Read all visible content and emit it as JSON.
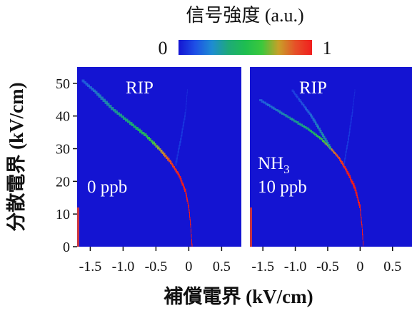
{
  "colorbar": {
    "title": "信号強度 (a.u.)",
    "min_label": "0",
    "max_label": "1",
    "colors": [
      "#1414d2",
      "#1e50e6",
      "#1e8cd2",
      "#1eaa78",
      "#1ebe50",
      "#3cc83c",
      "#c8a028",
      "#e65028",
      "#f01e1e"
    ]
  },
  "chart_data": [
    {
      "type": "heatmap",
      "panel": "left",
      "xlabel": "補償電界 (kV/cm)",
      "ylabel": "分散電界 (kV/cm)",
      "xlim": [
        -1.7,
        0.8
      ],
      "ylim": [
        0,
        55
      ],
      "xticks": [
        "-1.5",
        "-1.0",
        "-0.5",
        "0",
        "0.5"
      ],
      "xtick_values": [
        -1.5,
        -1.0,
        -0.5,
        0,
        0.5
      ],
      "yticks": [
        "0",
        "10",
        "20",
        "30",
        "40",
        "50"
      ],
      "ytick_values": [
        0,
        10,
        20,
        30,
        40,
        50
      ],
      "background_color": "#1414d2",
      "annotations": {
        "peak": "RIP",
        "gas": "",
        "concentration": "0 ppb"
      },
      "traces": [
        {
          "points": [
            [
              0.05,
              0
            ],
            [
              0.03,
              6
            ],
            [
              0.0,
              12
            ],
            [
              -0.05,
              17
            ],
            [
              -0.15,
              22
            ],
            [
              -0.28,
              26
            ],
            [
              -0.45,
              30
            ],
            [
              -0.65,
              34
            ],
            [
              -0.9,
              38
            ],
            [
              -1.15,
              42
            ],
            [
              -1.4,
              47
            ],
            [
              -1.62,
              51
            ]
          ],
          "intensity": [
            1.0,
            1.0,
            1.0,
            1.0,
            1.0,
            0.95,
            0.8,
            0.65,
            0.55,
            0.45,
            0.35,
            0.25
          ]
        },
        {
          "points": [
            [
              -0.2,
              25
            ],
            [
              -0.12,
              33
            ],
            [
              -0.05,
              41
            ],
            [
              -0.02,
              48
            ]
          ],
          "intensity": [
            0.12,
            0.15,
            0.12,
            0.08
          ]
        }
      ],
      "edge_marks": [
        {
          "x": -1.7,
          "y_range": [
            0,
            12
          ]
        }
      ]
    },
    {
      "type": "heatmap",
      "panel": "right",
      "xlabel": "補償電界 (kV/cm)",
      "xlim": [
        -1.7,
        0.8
      ],
      "ylim": [
        0,
        55
      ],
      "xticks": [
        "-1.5",
        "-1.0",
        "-0.5",
        "0",
        "0.5"
      ],
      "xtick_values": [
        -1.5,
        -1.0,
        -0.5,
        0,
        0.5
      ],
      "background_color": "#1414d2",
      "annotations": {
        "peak": "RIP",
        "gas": "NH3",
        "concentration": "10 ppb"
      },
      "traces": [
        {
          "points": [
            [
              0.05,
              0
            ],
            [
              0.03,
              6
            ],
            [
              0.0,
              12
            ],
            [
              -0.08,
              18
            ],
            [
              -0.2,
              23
            ],
            [
              -0.32,
              27
            ],
            [
              -0.45,
              30
            ],
            [
              -0.6,
              33
            ],
            [
              -0.8,
              36
            ],
            [
              -1.05,
              39
            ],
            [
              -1.3,
              42
            ],
            [
              -1.55,
              45
            ]
          ],
          "intensity": [
            1.0,
            1.0,
            1.0,
            1.0,
            1.0,
            0.95,
            0.85,
            0.7,
            0.55,
            0.45,
            0.35,
            0.25
          ]
        },
        {
          "points": [
            [
              -0.45,
              30
            ],
            [
              -0.6,
              35
            ],
            [
              -0.75,
              40
            ],
            [
              -0.9,
              44
            ],
            [
              -1.05,
              48
            ]
          ],
          "intensity": [
            0.45,
            0.4,
            0.3,
            0.22,
            0.15
          ]
        },
        {
          "points": [
            [
              -0.25,
              25
            ],
            [
              -0.18,
              33
            ],
            [
              -0.12,
              41
            ],
            [
              -0.08,
              48
            ]
          ],
          "intensity": [
            0.12,
            0.15,
            0.12,
            0.08
          ]
        }
      ],
      "edge_marks": [
        {
          "x": -1.7,
          "y_range": [
            0,
            12
          ]
        }
      ]
    }
  ]
}
